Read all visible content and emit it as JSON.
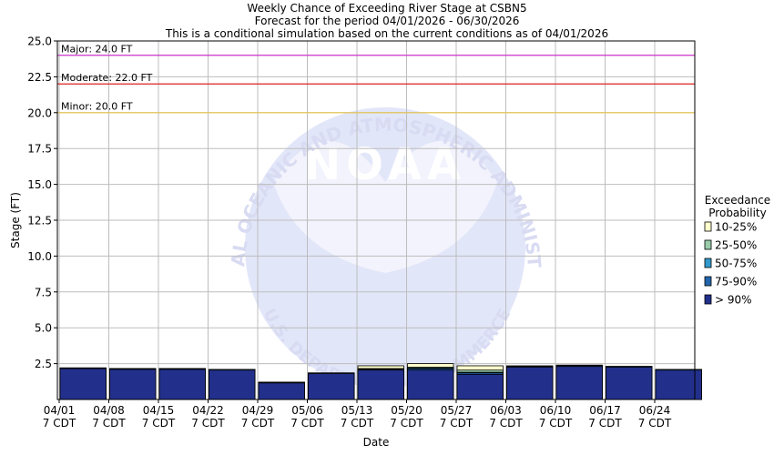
{
  "chart_data": {
    "type": "bar",
    "title": "Weekly Chance of Exceeding River Stage at CSBN5",
    "subtitle_1": "Forecast for the period 04/01/2026 - 06/30/2026",
    "subtitle_2": "This is a conditional simulation based on the current conditions as of 04/01/2026",
    "xlabel": "Date",
    "ylabel": "Stage (FT)",
    "ylim": [
      0,
      25
    ],
    "yticks": [
      "2.5",
      "5.0",
      "7.5",
      "10.0",
      "12.5",
      "15.0",
      "17.5",
      "20.0",
      "22.5",
      "25.0"
    ],
    "ytick_values": [
      2.5,
      5.0,
      7.5,
      10.0,
      12.5,
      15.0,
      17.5,
      20.0,
      22.5,
      25.0
    ],
    "categories": [
      "04/01",
      "04/08",
      "04/15",
      "04/22",
      "04/29",
      "05/06",
      "05/13",
      "05/20",
      "05/27",
      "06/03",
      "06/10",
      "06/17",
      "06/24"
    ],
    "tick_sublabel": "7 CDT",
    "grid": true,
    "legend_position": "right",
    "legend": {
      "title_1": "Exceedance",
      "title_2": "Probability",
      "entries": [
        "10-25%",
        "25-50%",
        "50-75%",
        "75-90%",
        "> 90%"
      ]
    },
    "series": [
      {
        "name": "> 90%",
        "values": [
          2.15,
          2.1,
          2.1,
          2.05,
          1.15,
          1.8,
          2.05,
          2.05,
          1.75,
          2.25,
          2.3,
          2.25,
          2.05
        ]
      },
      {
        "name": "75-90%",
        "values": [
          2.2,
          2.15,
          2.15,
          2.1,
          1.2,
          1.85,
          2.1,
          2.15,
          1.85,
          2.3,
          2.35,
          2.3,
          2.1
        ]
      },
      {
        "name": "50-75%",
        "values": [
          2.2,
          2.15,
          2.15,
          2.1,
          1.2,
          1.85,
          2.15,
          2.2,
          1.9,
          2.3,
          2.35,
          2.3,
          2.1
        ]
      },
      {
        "name": "25-50%",
        "values": [
          2.2,
          2.15,
          2.15,
          2.1,
          1.2,
          1.85,
          2.15,
          2.25,
          2.05,
          2.3,
          2.35,
          2.3,
          2.1
        ]
      },
      {
        "name": "10-25%",
        "values": [
          2.2,
          2.15,
          2.15,
          2.1,
          1.2,
          1.85,
          2.35,
          2.5,
          2.35,
          2.35,
          2.4,
          2.3,
          2.1
        ]
      }
    ],
    "thresholds": [
      {
        "label": "Major: 24.0 FT",
        "value": 24.0,
        "color": "#cc33cc"
      },
      {
        "label": "Moderate: 22.0 FT",
        "value": 22.0,
        "color": "#dd2222"
      },
      {
        "label": "Minor: 20.0 FT",
        "value": 20.0,
        "color": "#e8c44a"
      }
    ],
    "colors": {
      "> 90%": "#22308c",
      "75-90%": "#2166ac",
      "50-75%": "#3399cc",
      "25-50%": "#99ccaa",
      "10-25%": "#ffffcc"
    },
    "watermark": {
      "logo_text": "NOAA",
      "ring_text": "NATIONAL OCEANIC AND ATMOSPHERIC ADMINISTRATION",
      "bottom_text": "U.S. DEPARTMENT OF COMMERCE"
    }
  }
}
